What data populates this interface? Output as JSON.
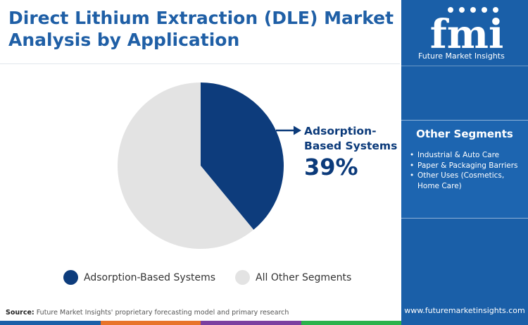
{
  "title": "Direct Lithium Extraction (DLE) Market Analysis by Application",
  "chart_data": {
    "type": "pie",
    "slices": [
      {
        "label": "Adsorption-Based Systems",
        "value": 39,
        "color": "#0d3c7c"
      },
      {
        "label": "All Other Segments",
        "value": 61,
        "color": "#e3e3e3"
      }
    ],
    "callout": {
      "label": "Adsorption-Based Systems",
      "value_text": "39%"
    },
    "legend_placement": "bottom"
  },
  "legend": [
    {
      "label": "Adsorption-Based Systems",
      "color": "#0d3c7c"
    },
    {
      "label": "All Other Segments",
      "color": "#e3e3e3"
    }
  ],
  "source": {
    "prefix": "Source:",
    "text": " Future Market Insights' proprietary forecasting model and primary research"
  },
  "sidebar": {
    "logo_text": "fmi",
    "logo_subtitle": "Future Market Insights",
    "other_segments_title": "Other Segments",
    "other_segments": [
      "Industrial & Auto Care",
      "Paper & Packaging Barriers",
      "Other Uses (Cosmetics, Home Care)"
    ],
    "url": "www.futuremarketinsights.com"
  },
  "colors": {
    "title": "#1f5fa6",
    "panel": "#1a5fa8",
    "stripe": [
      "#1a5fa8",
      "#e8742a",
      "#7b3fa0",
      "#2bb24c"
    ]
  }
}
